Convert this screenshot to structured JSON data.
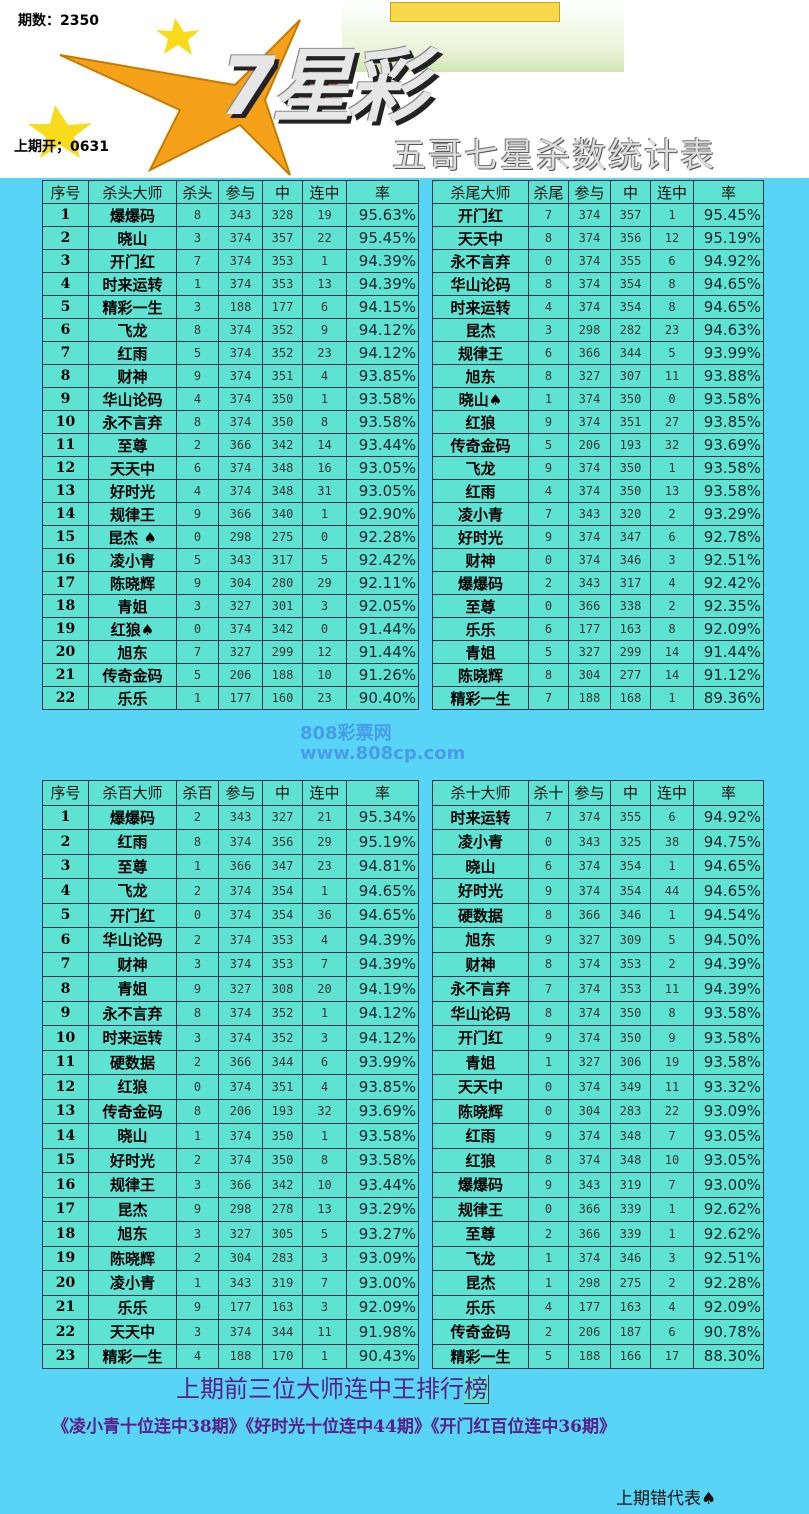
{
  "header": {
    "period": "期数：2350",
    "last_draw": "上期开；0631",
    "logo": "7星彩",
    "subtitle": "五哥七星杀数统计表"
  },
  "colors": {
    "background": "#58d4f6",
    "cell": "#5ee3d3",
    "footer_text": "#5a1d8c"
  },
  "watermark": {
    "line1": "808彩票网",
    "line2": "www.808cp.com"
  },
  "tables": [
    {
      "headers": [
        "序号",
        "杀头大师",
        "杀头",
        "参与",
        "中",
        "连中",
        "率"
      ],
      "rows": [
        [
          "1",
          "爆爆码",
          "8",
          "343",
          "328",
          "19",
          "95.63%"
        ],
        [
          "2",
          "晓山",
          "3",
          "374",
          "357",
          "22",
          "95.45%"
        ],
        [
          "3",
          "开门红",
          "7",
          "374",
          "353",
          "1",
          "94.39%"
        ],
        [
          "4",
          "时来运转",
          "1",
          "374",
          "353",
          "13",
          "94.39%"
        ],
        [
          "5",
          "精彩一生",
          "3",
          "188",
          "177",
          "6",
          "94.15%"
        ],
        [
          "6",
          "飞龙",
          "8",
          "374",
          "352",
          "9",
          "94.12%"
        ],
        [
          "7",
          "红雨",
          "5",
          "374",
          "352",
          "23",
          "94.12%"
        ],
        [
          "8",
          "财神",
          "9",
          "374",
          "351",
          "4",
          "93.85%"
        ],
        [
          "9",
          "华山论码",
          "4",
          "374",
          "350",
          "1",
          "93.58%"
        ],
        [
          "10",
          "永不言弃",
          "8",
          "374",
          "350",
          "8",
          "93.58%"
        ],
        [
          "11",
          "至尊",
          "2",
          "366",
          "342",
          "14",
          "93.44%"
        ],
        [
          "12",
          "天天中",
          "6",
          "374",
          "348",
          "16",
          "93.05%"
        ],
        [
          "13",
          "好时光",
          "4",
          "374",
          "348",
          "31",
          "93.05%"
        ],
        [
          "14",
          "规律王",
          "9",
          "366",
          "340",
          "1",
          "92.90%"
        ],
        [
          "15",
          "昆杰 ♠",
          "0",
          "298",
          "275",
          "0",
          "92.28%"
        ],
        [
          "16",
          "凌小青",
          "5",
          "343",
          "317",
          "5",
          "92.42%"
        ],
        [
          "17",
          "陈晓辉",
          "9",
          "304",
          "280",
          "29",
          "92.11%"
        ],
        [
          "18",
          "青姐",
          "3",
          "327",
          "301",
          "3",
          "92.05%"
        ],
        [
          "19",
          "红狼♠",
          "0",
          "374",
          "342",
          "0",
          "91.44%"
        ],
        [
          "20",
          "旭东",
          "7",
          "327",
          "299",
          "12",
          "91.44%"
        ],
        [
          "21",
          "传奇金码",
          "5",
          "206",
          "188",
          "10",
          "91.26%"
        ],
        [
          "22",
          "乐乐",
          "1",
          "177",
          "160",
          "23",
          "90.40%"
        ]
      ]
    },
    {
      "headers": [
        "杀尾大师",
        "杀尾",
        "参与",
        "中",
        "连中",
        "率"
      ],
      "rows": [
        [
          "开门红",
          "7",
          "374",
          "357",
          "1",
          "95.45%"
        ],
        [
          "天天中",
          "8",
          "374",
          "356",
          "12",
          "95.19%"
        ],
        [
          "永不言弃",
          "0",
          "374",
          "355",
          "6",
          "94.92%"
        ],
        [
          "华山论码",
          "8",
          "374",
          "354",
          "8",
          "94.65%"
        ],
        [
          "时来运转",
          "4",
          "374",
          "354",
          "8",
          "94.65%"
        ],
        [
          "昆杰",
          "3",
          "298",
          "282",
          "23",
          "94.63%"
        ],
        [
          "规律王",
          "6",
          "366",
          "344",
          "5",
          "93.99%"
        ],
        [
          "旭东",
          "8",
          "327",
          "307",
          "11",
          "93.88%"
        ],
        [
          "晓山♠",
          "1",
          "374",
          "350",
          "0",
          "93.58%"
        ],
        [
          "红狼",
          "9",
          "374",
          "351",
          "27",
          "93.85%"
        ],
        [
          "传奇金码",
          "5",
          "206",
          "193",
          "32",
          "93.69%"
        ],
        [
          "飞龙",
          "9",
          "374",
          "350",
          "1",
          "93.58%"
        ],
        [
          "红雨",
          "4",
          "374",
          "350",
          "13",
          "93.58%"
        ],
        [
          "凌小青",
          "7",
          "343",
          "320",
          "2",
          "93.29%"
        ],
        [
          "好时光",
          "9",
          "374",
          "347",
          "6",
          "92.78%"
        ],
        [
          "财神",
          "0",
          "374",
          "346",
          "3",
          "92.51%"
        ],
        [
          "爆爆码",
          "2",
          "343",
          "317",
          "4",
          "92.42%"
        ],
        [
          "至尊",
          "0",
          "366",
          "338",
          "2",
          "92.35%"
        ],
        [
          "乐乐",
          "6",
          "177",
          "163",
          "8",
          "92.09%"
        ],
        [
          "青姐",
          "5",
          "327",
          "299",
          "14",
          "91.44%"
        ],
        [
          "陈晓辉",
          "8",
          "304",
          "277",
          "14",
          "91.12%"
        ],
        [
          "精彩一生",
          "7",
          "188",
          "168",
          "1",
          "89.36%"
        ]
      ]
    },
    {
      "headers": [
        "序号",
        "杀百大师",
        "杀百",
        "参与",
        "中",
        "连中",
        "率"
      ],
      "rows": [
        [
          "1",
          "爆爆码",
          "2",
          "343",
          "327",
          "21",
          "95.34%"
        ],
        [
          "2",
          "红雨",
          "8",
          "374",
          "356",
          "29",
          "95.19%"
        ],
        [
          "3",
          "至尊",
          "1",
          "366",
          "347",
          "23",
          "94.81%"
        ],
        [
          "4",
          "飞龙",
          "2",
          "374",
          "354",
          "1",
          "94.65%"
        ],
        [
          "5",
          "开门红",
          "0",
          "374",
          "354",
          "36",
          "94.65%"
        ],
        [
          "6",
          "华山论码",
          "2",
          "374",
          "353",
          "4",
          "94.39%"
        ],
        [
          "7",
          "财神",
          "3",
          "374",
          "353",
          "7",
          "94.39%"
        ],
        [
          "8",
          "青姐",
          "9",
          "327",
          "308",
          "20",
          "94.19%"
        ],
        [
          "9",
          "永不言弃",
          "8",
          "374",
          "352",
          "1",
          "94.12%"
        ],
        [
          "10",
          "时来运转",
          "3",
          "374",
          "352",
          "3",
          "94.12%"
        ],
        [
          "11",
          "硬数据",
          "2",
          "366",
          "344",
          "6",
          "93.99%"
        ],
        [
          "12",
          "红狼",
          "0",
          "374",
          "351",
          "4",
          "93.85%"
        ],
        [
          "13",
          "传奇金码",
          "8",
          "206",
          "193",
          "32",
          "93.69%"
        ],
        [
          "14",
          "晓山",
          "1",
          "374",
          "350",
          "1",
          "93.58%"
        ],
        [
          "15",
          "好时光",
          "2",
          "374",
          "350",
          "8",
          "93.58%"
        ],
        [
          "16",
          "规律王",
          "3",
          "366",
          "342",
          "10",
          "93.44%"
        ],
        [
          "17",
          "昆杰",
          "9",
          "298",
          "278",
          "13",
          "93.29%"
        ],
        [
          "18",
          "旭东",
          "3",
          "327",
          "305",
          "5",
          "93.27%"
        ],
        [
          "19",
          "陈晓辉",
          "2",
          "304",
          "283",
          "3",
          "93.09%"
        ],
        [
          "20",
          "凌小青",
          "1",
          "343",
          "319",
          "7",
          "93.00%"
        ],
        [
          "21",
          "乐乐",
          "9",
          "177",
          "163",
          "3",
          "92.09%"
        ],
        [
          "22",
          "天天中",
          "3",
          "374",
          "344",
          "11",
          "91.98%"
        ],
        [
          "23",
          "精彩一生",
          "4",
          "188",
          "170",
          "1",
          "90.43%"
        ]
      ]
    },
    {
      "headers": [
        "杀十大师",
        "杀十",
        "参与",
        "中",
        "连中",
        "率"
      ],
      "rows": [
        [
          "时来运转",
          "7",
          "374",
          "355",
          "6",
          "94.92%"
        ],
        [
          "凌小青",
          "0",
          "343",
          "325",
          "38",
          "94.75%"
        ],
        [
          "晓山",
          "6",
          "374",
          "354",
          "1",
          "94.65%"
        ],
        [
          "好时光",
          "9",
          "374",
          "354",
          "44",
          "94.65%"
        ],
        [
          "硬数据",
          "8",
          "366",
          "346",
          "1",
          "94.54%"
        ],
        [
          "旭东",
          "9",
          "327",
          "309",
          "5",
          "94.50%"
        ],
        [
          "财神",
          "8",
          "374",
          "353",
          "2",
          "94.39%"
        ],
        [
          "永不言弃",
          "7",
          "374",
          "353",
          "11",
          "94.39%"
        ],
        [
          "华山论码",
          "8",
          "374",
          "350",
          "8",
          "93.58%"
        ],
        [
          "开门红",
          "9",
          "374",
          "350",
          "9",
          "93.58%"
        ],
        [
          "青姐",
          "1",
          "327",
          "306",
          "19",
          "93.58%"
        ],
        [
          "天天中",
          "0",
          "374",
          "349",
          "11",
          "93.32%"
        ],
        [
          "陈晓辉",
          "0",
          "304",
          "283",
          "22",
          "93.09%"
        ],
        [
          "红雨",
          "9",
          "374",
          "348",
          "7",
          "93.05%"
        ],
        [
          "红狼",
          "8",
          "374",
          "348",
          "10",
          "93.05%"
        ],
        [
          "爆爆码",
          "9",
          "343",
          "319",
          "7",
          "93.00%"
        ],
        [
          "规律王",
          "0",
          "366",
          "339",
          "1",
          "92.62%"
        ],
        [
          "至尊",
          "2",
          "366",
          "339",
          "1",
          "92.62%"
        ],
        [
          "飞龙",
          "1",
          "374",
          "346",
          "3",
          "92.51%"
        ],
        [
          "昆杰",
          "1",
          "298",
          "275",
          "2",
          "92.28%"
        ],
        [
          "乐乐",
          "4",
          "177",
          "163",
          "4",
          "92.09%"
        ],
        [
          "传奇金码",
          "2",
          "206",
          "187",
          "6",
          "90.78%"
        ],
        [
          "精彩一生",
          "5",
          "188",
          "166",
          "17",
          "88.30%"
        ]
      ]
    }
  ],
  "footer": {
    "title_main": "上期前三位大师连中王排行",
    "title_last": "榜",
    "streaks": "《凌小青十位连中38期》《好时光十位连中44期》《开门红百位连中36期》",
    "error_marker": "上期错代表♠"
  }
}
